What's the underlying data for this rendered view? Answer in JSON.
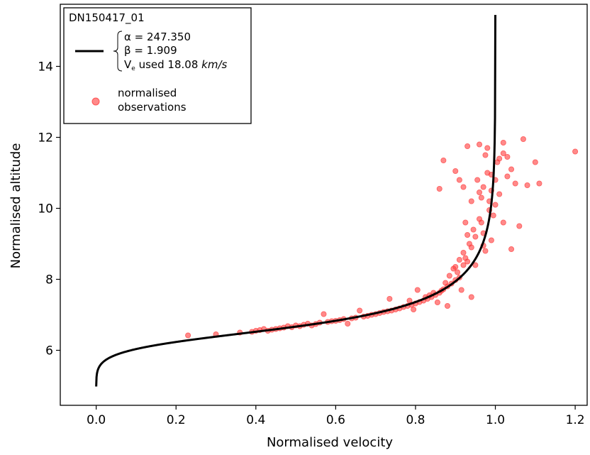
{
  "chart_data": {
    "type": "scatter",
    "xlabel": "Normalised velocity",
    "ylabel": "Normalised altitude",
    "xlim": [
      -0.09,
      1.23
    ],
    "ylim": [
      4.45,
      15.75
    ],
    "x_ticks": [
      0.0,
      0.2,
      0.4,
      0.6,
      0.8,
      1.0,
      1.2
    ],
    "x_tick_labels": [
      "0.0",
      "0.2",
      "0.4",
      "0.6",
      "0.8",
      "1.0",
      "1.2"
    ],
    "y_ticks": [
      6,
      8,
      10,
      12,
      14
    ],
    "y_tick_labels": [
      "6",
      "8",
      "10",
      "12",
      "14"
    ],
    "grid": false,
    "legend": {
      "placement": "top-left",
      "title": "DN150417_01",
      "fit_params": {
        "alpha": "α =  247.350",
        "beta": "β =  1.909",
        "ve_symbol": "V",
        "ve_sub": "e",
        "ve_text": "  used 18.08 ",
        "ve_unit": "km/s"
      },
      "obs_label_line1": "normalised",
      "obs_label_line2": "observations"
    },
    "fit_params_numeric": {
      "alpha": 247.35,
      "beta": 1.909,
      "ve_kms": 18.08
    },
    "fit_curve_color": "#000000",
    "observation_color": "#ff3b3b",
    "observations": [
      [
        0.23,
        6.42
      ],
      [
        0.3,
        6.45
      ],
      [
        0.36,
        6.5
      ],
      [
        0.39,
        6.52
      ],
      [
        0.4,
        6.55
      ],
      [
        0.41,
        6.57
      ],
      [
        0.42,
        6.6
      ],
      [
        0.43,
        6.55
      ],
      [
        0.44,
        6.58
      ],
      [
        0.45,
        6.6
      ],
      [
        0.46,
        6.62
      ],
      [
        0.47,
        6.64
      ],
      [
        0.48,
        6.68
      ],
      [
        0.49,
        6.65
      ],
      [
        0.5,
        6.7
      ],
      [
        0.51,
        6.68
      ],
      [
        0.52,
        6.72
      ],
      [
        0.53,
        6.75
      ],
      [
        0.54,
        6.7
      ],
      [
        0.55,
        6.74
      ],
      [
        0.56,
        6.78
      ],
      [
        0.57,
        7.02
      ],
      [
        0.58,
        6.8
      ],
      [
        0.59,
        6.82
      ],
      [
        0.6,
        6.83
      ],
      [
        0.61,
        6.85
      ],
      [
        0.62,
        6.88
      ],
      [
        0.63,
        6.75
      ],
      [
        0.64,
        6.9
      ],
      [
        0.65,
        6.92
      ],
      [
        0.66,
        7.12
      ],
      [
        0.67,
        6.95
      ],
      [
        0.68,
        6.97
      ],
      [
        0.69,
        7.0
      ],
      [
        0.7,
        7.02
      ],
      [
        0.71,
        7.05
      ],
      [
        0.72,
        7.08
      ],
      [
        0.73,
        7.1
      ],
      [
        0.735,
        7.45
      ],
      [
        0.74,
        7.12
      ],
      [
        0.75,
        7.15
      ],
      [
        0.76,
        7.18
      ],
      [
        0.77,
        7.22
      ],
      [
        0.78,
        7.25
      ],
      [
        0.785,
        7.4
      ],
      [
        0.79,
        7.28
      ],
      [
        0.795,
        7.15
      ],
      [
        0.8,
        7.32
      ],
      [
        0.805,
        7.7
      ],
      [
        0.81,
        7.36
      ],
      [
        0.82,
        7.4
      ],
      [
        0.825,
        7.5
      ],
      [
        0.83,
        7.45
      ],
      [
        0.835,
        7.55
      ],
      [
        0.84,
        7.5
      ],
      [
        0.845,
        7.62
      ],
      [
        0.85,
        7.56
      ],
      [
        0.855,
        7.35
      ],
      [
        0.86,
        7.62
      ],
      [
        0.865,
        7.68
      ],
      [
        0.87,
        7.72
      ],
      [
        0.875,
        7.9
      ],
      [
        0.88,
        7.8
      ],
      [
        0.885,
        8.1
      ],
      [
        0.89,
        7.88
      ],
      [
        0.895,
        8.3
      ],
      [
        0.9,
        7.98
      ],
      [
        0.905,
        8.2
      ],
      [
        0.91,
        8.05
      ],
      [
        0.915,
        7.7
      ],
      [
        0.92,
        8.4
      ],
      [
        0.925,
        8.6
      ],
      [
        0.93,
        8.5
      ],
      [
        0.935,
        9.0
      ],
      [
        0.94,
        8.9
      ],
      [
        0.945,
        9.4
      ],
      [
        0.95,
        9.2
      ],
      [
        0.955,
        10.8
      ],
      [
        0.96,
        9.7
      ],
      [
        0.965,
        10.3
      ],
      [
        0.97,
        10.6
      ],
      [
        0.975,
        11.5
      ],
      [
        0.98,
        11.0
      ],
      [
        0.985,
        10.2
      ],
      [
        0.99,
        10.5
      ],
      [
        0.995,
        9.8
      ],
      [
        1.0,
        10.8
      ],
      [
        1.005,
        11.3
      ],
      [
        1.01,
        10.4
      ],
      [
        1.02,
        9.6
      ],
      [
        1.03,
        10.9
      ],
      [
        1.04,
        11.1
      ],
      [
        1.05,
        10.7
      ],
      [
        1.07,
        11.95
      ],
      [
        1.08,
        10.65
      ],
      [
        1.1,
        11.3
      ],
      [
        1.11,
        10.7
      ],
      [
        1.2,
        11.6
      ],
      [
        0.86,
        10.55
      ],
      [
        0.87,
        11.35
      ],
      [
        0.9,
        11.05
      ],
      [
        0.91,
        10.8
      ],
      [
        0.92,
        10.6
      ],
      [
        0.93,
        11.75
      ],
      [
        0.94,
        10.2
      ],
      [
        0.95,
        8.4
      ],
      [
        0.96,
        11.8
      ],
      [
        0.97,
        9.3
      ],
      [
        0.98,
        11.7
      ],
      [
        0.99,
        9.1
      ],
      [
        1.02,
        11.85
      ],
      [
        1.06,
        9.5
      ],
      [
        1.04,
        8.85
      ],
      [
        0.88,
        7.25
      ],
      [
        0.94,
        7.5
      ],
      [
        0.975,
        8.8
      ],
      [
        0.985,
        9.95
      ],
      [
        0.99,
        10.95
      ],
      [
        1.0,
        10.1
      ],
      [
        1.01,
        11.4
      ],
      [
        1.02,
        11.55
      ],
      [
        1.03,
        11.45
      ],
      [
        0.96,
        10.45
      ],
      [
        0.965,
        9.6
      ],
      [
        0.97,
        8.95
      ],
      [
        0.93,
        9.25
      ],
      [
        0.925,
        9.6
      ],
      [
        0.92,
        8.75
      ],
      [
        0.91,
        8.55
      ],
      [
        0.9,
        8.35
      ]
    ]
  }
}
